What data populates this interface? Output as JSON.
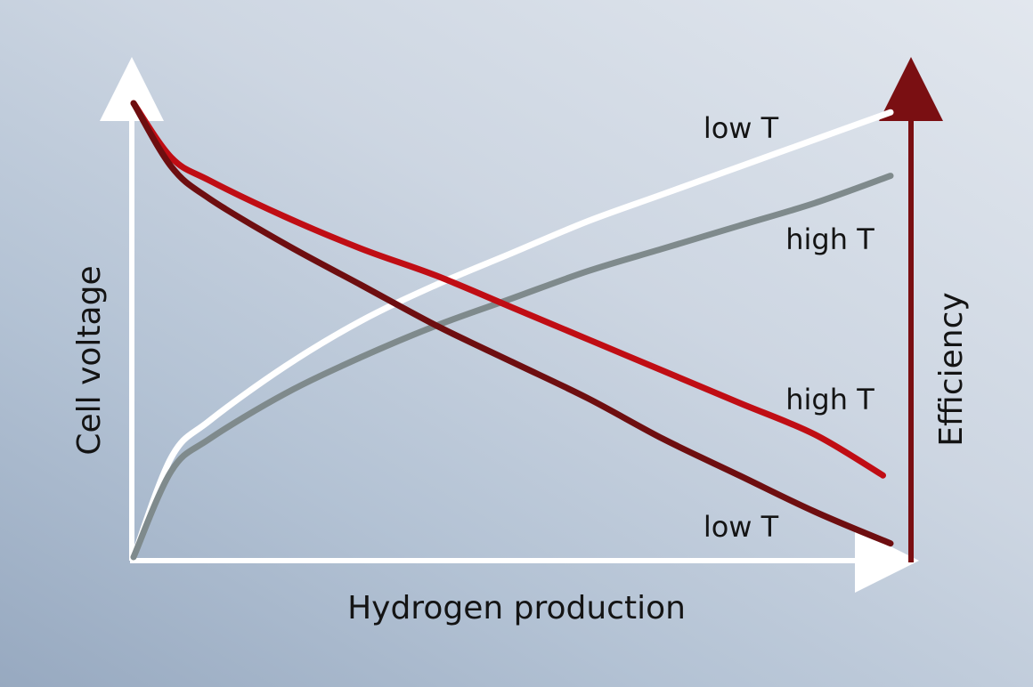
{
  "chart_data": {
    "type": "line",
    "xlabel": "Hydrogen production",
    "ylabel": "Cell voltage",
    "y2label": "Efficiency",
    "ticks": "none",
    "grid": false,
    "legend": "none",
    "colors": {
      "cell_voltage_axis": "#ffffff",
      "efficiency_axis": "#7a0f12",
      "x_axis": "#ffffff"
    },
    "series": [
      {
        "name": "low T",
        "axis": "efficiency",
        "color": "#ffffff",
        "x": [
          0.0,
          0.05,
          0.1,
          0.2,
          0.3,
          0.4,
          0.5,
          0.6,
          0.7,
          0.8,
          0.9,
          1.0
        ],
        "y": [
          0.0,
          0.22,
          0.3,
          0.42,
          0.52,
          0.6,
          0.67,
          0.74,
          0.8,
          0.86,
          0.92,
          0.98
        ]
      },
      {
        "name": "high T",
        "axis": "efficiency",
        "color": "#7f8a8c",
        "x": [
          0.0,
          0.05,
          0.1,
          0.2,
          0.3,
          0.4,
          0.5,
          0.6,
          0.7,
          0.8,
          0.9,
          1.0
        ],
        "y": [
          0.0,
          0.19,
          0.26,
          0.36,
          0.44,
          0.51,
          0.57,
          0.63,
          0.68,
          0.73,
          0.78,
          0.84
        ]
      },
      {
        "name": "high T",
        "axis": "cell_voltage",
        "color": "#c00d14",
        "x": [
          0.0,
          0.05,
          0.1,
          0.2,
          0.3,
          0.4,
          0.5,
          0.6,
          0.7,
          0.8,
          0.9,
          0.99
        ],
        "y": [
          1.0,
          0.88,
          0.83,
          0.75,
          0.68,
          0.62,
          0.55,
          0.48,
          0.41,
          0.34,
          0.27,
          0.18
        ]
      },
      {
        "name": "low T",
        "axis": "cell_voltage",
        "color": "#6e0e10",
        "x": [
          0.0,
          0.05,
          0.1,
          0.2,
          0.3,
          0.4,
          0.5,
          0.6,
          0.7,
          0.8,
          0.9,
          1.0
        ],
        "y": [
          1.0,
          0.86,
          0.79,
          0.69,
          0.6,
          0.51,
          0.43,
          0.35,
          0.26,
          0.18,
          0.1,
          0.03
        ]
      }
    ]
  }
}
